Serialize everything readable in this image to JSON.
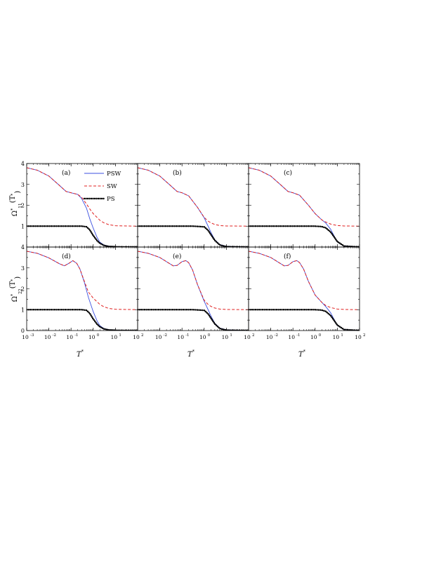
{
  "chart_data": {
    "type": "line",
    "xscale": "log",
    "xlim": [
      0.001,
      100
    ],
    "xticks": [
      0.001,
      0.01,
      0.1,
      1,
      10,
      100
    ],
    "xtick_labels": [
      "10",
      "10",
      "10",
      "10",
      "10",
      "10"
    ],
    "xtick_exponents": [
      "-3",
      "-2",
      "-1",
      "0",
      "1",
      "2"
    ],
    "xlabel_base": "T",
    "xlabel_sup": "*",
    "top_ylabel": {
      "base": "Ω",
      "sup": "*",
      "sub": "11",
      "arg": "(T",
      "arg_sup": "*",
      "close": ")"
    },
    "bottom_ylabel": {
      "base": "Ω",
      "sup": "*",
      "sub": "22",
      "arg": "(T",
      "arg_sup": "*",
      "close": ")"
    },
    "ylim": [
      0,
      4
    ],
    "top_ytick_labels": [
      "4",
      "3",
      "2",
      "1"
    ],
    "bottom_ytick_labels": [
      "4",
      "3",
      "2",
      "1",
      "0"
    ],
    "legend": {
      "placement": "top-right of panel (a)",
      "entries": [
        {
          "label": "PSW",
          "color": "#3b4fe0",
          "style": "solid"
        },
        {
          "label": "SW",
          "color": "#e02020",
          "style": "dashed"
        },
        {
          "label": "PS",
          "color": "#000000",
          "style": "dotted"
        }
      ]
    },
    "panels": [
      {
        "label": "(a)",
        "series": [
          {
            "key": "PSW",
            "x": [
              0.001,
              0.003,
              0.01,
              0.03,
              0.06,
              0.1,
              0.2,
              0.3,
              0.5,
              0.7,
              1,
              1.5,
              2,
              3,
              5,
              10,
              100
            ],
            "y": [
              3.8,
              3.68,
              3.4,
              2.95,
              2.66,
              2.6,
              2.52,
              2.32,
              1.85,
              1.35,
              0.9,
              0.45,
              0.23,
              0.1,
              0.04,
              0.01,
              0.0
            ]
          },
          {
            "key": "SW",
            "x": [
              0.001,
              0.003,
              0.01,
              0.03,
              0.06,
              0.1,
              0.2,
              0.3,
              0.5,
              0.7,
              1,
              2,
              3,
              5,
              10,
              100
            ],
            "y": [
              3.8,
              3.68,
              3.4,
              2.95,
              2.66,
              2.6,
              2.52,
              2.38,
              2.06,
              1.82,
              1.6,
              1.28,
              1.16,
              1.07,
              1.02,
              1.0
            ]
          },
          {
            "key": "PS",
            "x": [
              0.001,
              0.1,
              0.3,
              0.5,
              0.7,
              1,
              1.5,
              2,
              3,
              5,
              10,
              100
            ],
            "y": [
              1.0,
              1.0,
              1.0,
              0.97,
              0.82,
              0.55,
              0.3,
              0.18,
              0.08,
              0.03,
              0.01,
              0.0
            ]
          }
        ]
      },
      {
        "label": "(b)",
        "series": [
          {
            "key": "PSW",
            "x": [
              0.001,
              0.003,
              0.01,
              0.03,
              0.06,
              0.1,
              0.2,
              0.5,
              1,
              1.5,
              2,
              3,
              5,
              10,
              100
            ],
            "y": [
              3.8,
              3.68,
              3.4,
              2.95,
              2.66,
              2.6,
              2.45,
              1.9,
              1.4,
              1.0,
              0.7,
              0.35,
              0.12,
              0.03,
              0.0
            ]
          },
          {
            "key": "SW",
            "x": [
              0.001,
              0.003,
              0.01,
              0.03,
              0.06,
              0.1,
              0.2,
              0.5,
              1,
              1.5,
              2,
              3,
              5,
              10,
              100
            ],
            "y": [
              3.8,
              3.68,
              3.4,
              2.95,
              2.66,
              2.6,
              2.45,
              1.9,
              1.42,
              1.24,
              1.16,
              1.08,
              1.03,
              1.01,
              1.0
            ]
          },
          {
            "key": "PS",
            "x": [
              0.001,
              0.3,
              1,
              1.5,
              2,
              3,
              5,
              10,
              100
            ],
            "y": [
              1.0,
              1.0,
              0.97,
              0.8,
              0.6,
              0.32,
              0.1,
              0.02,
              0.0
            ]
          }
        ]
      },
      {
        "label": "(c)",
        "series": [
          {
            "key": "PSW",
            "x": [
              0.001,
              0.003,
              0.01,
              0.03,
              0.06,
              0.1,
              0.2,
              0.5,
              1,
              2,
              3,
              5,
              7,
              10,
              20,
              100
            ],
            "y": [
              3.8,
              3.68,
              3.4,
              2.95,
              2.66,
              2.6,
              2.48,
              2.0,
              1.6,
              1.3,
              1.15,
              0.85,
              0.55,
              0.25,
              0.05,
              0.0
            ]
          },
          {
            "key": "SW",
            "x": [
              0.001,
              0.003,
              0.01,
              0.03,
              0.06,
              0.1,
              0.2,
              0.5,
              1,
              2,
              3,
              5,
              10,
              20,
              100
            ],
            "y": [
              3.8,
              3.68,
              3.4,
              2.95,
              2.66,
              2.6,
              2.48,
              2.0,
              1.6,
              1.3,
              1.2,
              1.1,
              1.03,
              1.01,
              1.0
            ]
          },
          {
            "key": "PS",
            "x": [
              0.001,
              1,
              2,
              3,
              5,
              7,
              10,
              20,
              100
            ],
            "y": [
              1.0,
              1.0,
              0.98,
              0.92,
              0.72,
              0.5,
              0.26,
              0.05,
              0.0
            ]
          }
        ]
      },
      {
        "label": "(d)",
        "series": [
          {
            "key": "PSW",
            "x": [
              0.001,
              0.003,
              0.01,
              0.03,
              0.05,
              0.08,
              0.12,
              0.18,
              0.25,
              0.4,
              0.6,
              1,
              1.5,
              2,
              3,
              5,
              10,
              100
            ],
            "y": [
              3.8,
              3.7,
              3.48,
              3.2,
              3.1,
              3.22,
              3.35,
              3.22,
              2.95,
              2.3,
              1.6,
              0.9,
              0.45,
              0.23,
              0.1,
              0.04,
              0.01,
              0.0
            ]
          },
          {
            "key": "SW",
            "x": [
              0.001,
              0.003,
              0.01,
              0.03,
              0.05,
              0.08,
              0.12,
              0.18,
              0.25,
              0.4,
              0.6,
              1,
              2,
              3,
              5,
              10,
              100
            ],
            "y": [
              3.8,
              3.7,
              3.48,
              3.2,
              3.1,
              3.22,
              3.35,
              3.22,
              2.95,
              2.35,
              1.85,
              1.55,
              1.25,
              1.14,
              1.06,
              1.02,
              1.0
            ]
          },
          {
            "key": "PS",
            "x": [
              0.001,
              0.1,
              0.3,
              0.5,
              0.7,
              1,
              1.5,
              2,
              3,
              5,
              10,
              100
            ],
            "y": [
              1.0,
              1.0,
              1.0,
              0.97,
              0.82,
              0.55,
              0.3,
              0.18,
              0.08,
              0.03,
              0.01,
              0.0
            ]
          }
        ]
      },
      {
        "label": "(e)",
        "series": [
          {
            "key": "PSW",
            "x": [
              0.001,
              0.003,
              0.01,
              0.02,
              0.04,
              0.06,
              0.1,
              0.15,
              0.2,
              0.3,
              0.5,
              1,
              1.5,
              2,
              3,
              5,
              10,
              100
            ],
            "y": [
              3.8,
              3.7,
              3.5,
              3.3,
              3.1,
              3.12,
              3.3,
              3.35,
              3.25,
              2.9,
              2.2,
              1.4,
              1.0,
              0.7,
              0.35,
              0.12,
              0.03,
              0.0
            ]
          },
          {
            "key": "SW",
            "x": [
              0.001,
              0.003,
              0.01,
              0.02,
              0.04,
              0.06,
              0.1,
              0.15,
              0.2,
              0.3,
              0.5,
              1,
              1.5,
              2,
              3,
              5,
              10,
              100
            ],
            "y": [
              3.8,
              3.7,
              3.5,
              3.3,
              3.1,
              3.12,
              3.3,
              3.35,
              3.25,
              2.9,
              2.2,
              1.45,
              1.25,
              1.16,
              1.08,
              1.03,
              1.01,
              1.0
            ]
          },
          {
            "key": "PS",
            "x": [
              0.001,
              0.3,
              1,
              1.5,
              2,
              3,
              5,
              10,
              100
            ],
            "y": [
              1.0,
              1.0,
              0.97,
              0.8,
              0.6,
              0.32,
              0.1,
              0.02,
              0.0
            ]
          }
        ]
      },
      {
        "label": "(f)",
        "series": [
          {
            "key": "PSW",
            "x": [
              0.001,
              0.003,
              0.01,
              0.02,
              0.04,
              0.06,
              0.1,
              0.15,
              0.2,
              0.3,
              0.5,
              1,
              2,
              3,
              5,
              7,
              10,
              20,
              100
            ],
            "y": [
              3.8,
              3.7,
              3.5,
              3.3,
              3.1,
              3.12,
              3.3,
              3.35,
              3.25,
              2.95,
              2.35,
              1.7,
              1.35,
              1.15,
              0.85,
              0.55,
              0.25,
              0.05,
              0.0
            ]
          },
          {
            "key": "SW",
            "x": [
              0.001,
              0.003,
              0.01,
              0.02,
              0.04,
              0.06,
              0.1,
              0.15,
              0.2,
              0.3,
              0.5,
              1,
              2,
              3,
              5,
              10,
              20,
              100
            ],
            "y": [
              3.8,
              3.7,
              3.5,
              3.3,
              3.1,
              3.12,
              3.3,
              3.35,
              3.25,
              2.95,
              2.35,
              1.7,
              1.35,
              1.2,
              1.1,
              1.03,
              1.01,
              1.0
            ]
          },
          {
            "key": "PS",
            "x": [
              0.001,
              1,
              2,
              3,
              5,
              7,
              10,
              20,
              100
            ],
            "y": [
              1.0,
              1.0,
              0.98,
              0.92,
              0.72,
              0.5,
              0.26,
              0.05,
              0.0
            ]
          }
        ]
      }
    ]
  }
}
